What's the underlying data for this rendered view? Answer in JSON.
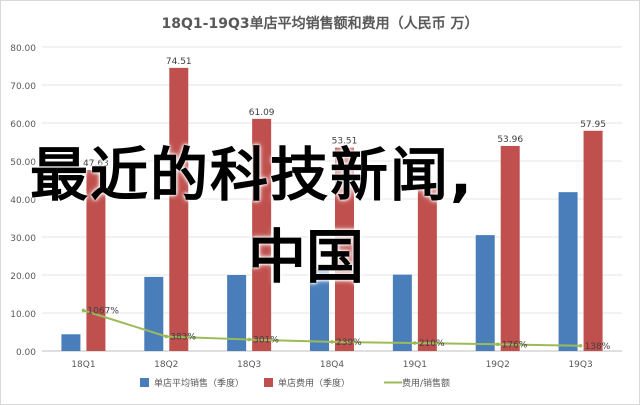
{
  "chart_data": {
    "type": "bar+line",
    "title": "18Q1-19Q3单店平均销售额和费用（人民币 万）",
    "categories": [
      "18Q1",
      "18Q2",
      "18Q3",
      "18Q4",
      "19Q1",
      "19Q2",
      "19Q3"
    ],
    "ylim": [
      0,
      80
    ],
    "yticks": [
      "0.00",
      "10.00",
      "20.00",
      "30.00",
      "40.00",
      "50.00",
      "60.00",
      "70.00",
      "80.00"
    ],
    "grid": true,
    "legend_position": "bottom",
    "series": [
      {
        "name": "单店平均销售（季度）",
        "type": "bar",
        "color": "#4a7ebb",
        "values": [
          4.4,
          19.5,
          20.0,
          21.9,
          20.1,
          30.5,
          41.8
        ],
        "labels": [
          "",
          "",
          "",
          "",
          "",
          "",
          ""
        ]
      },
      {
        "name": "单店费用（季度）",
        "type": "bar",
        "color": "#c0504d",
        "values": [
          47.63,
          74.51,
          61.09,
          53.51,
          43.0,
          53.96,
          57.95
        ],
        "labels": [
          "47.63",
          "74.51",
          "61.09",
          "53.51",
          "",
          "53.96",
          "57.95"
        ]
      },
      {
        "name": "费用/销售额",
        "type": "line",
        "color": "#9bbb59",
        "values": [
          10.67,
          3.83,
          3.01,
          2.39,
          2.1,
          1.76,
          1.38
        ],
        "labels": [
          "1067%",
          "383%",
          "301%",
          "239%",
          "210%",
          "176%",
          "138%"
        ]
      }
    ]
  },
  "overlay": {
    "line1": "最近的科技新闻,",
    "line2": "中国"
  }
}
